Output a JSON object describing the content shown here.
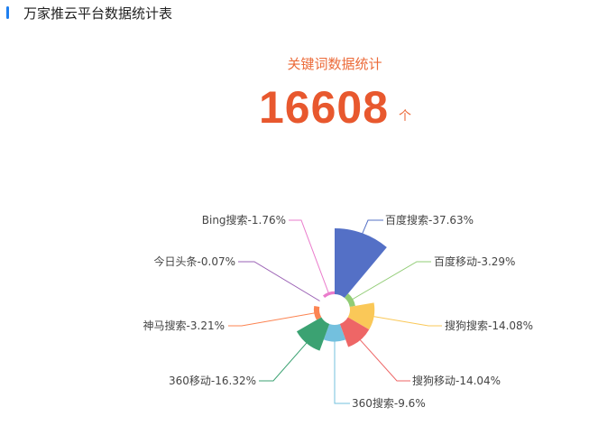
{
  "header": {
    "title": "万家推云平台数据统计表"
  },
  "summary": {
    "label": "关键词数据统计",
    "total": "16608",
    "unit": "个"
  },
  "chart_data": {
    "type": "pie",
    "rose": true,
    "categories": [
      "百度搜索",
      "百度移动",
      "搜狗搜索",
      "搜狗移动",
      "360搜索",
      "360移动",
      "神马搜索",
      "今日头条",
      "Bing搜索"
    ],
    "values": [
      37.63,
      3.29,
      14.08,
      14.04,
      9.6,
      16.32,
      3.21,
      0.07,
      1.76
    ],
    "labels": [
      "百度搜索-37.63%",
      "百度移动-3.29%",
      "搜狗搜索-14.08%",
      "搜狗移动-14.04%",
      "360搜索-9.6%",
      "360移动-16.32%",
      "神马搜索-3.21%",
      "今日头条-0.07%",
      "Bing搜索-1.76%"
    ],
    "colors": [
      "#5470c6",
      "#91cc75",
      "#fac858",
      "#ee6666",
      "#73c0de",
      "#3ba272",
      "#fc8452",
      "#9a60b4",
      "#ea7ccc"
    ]
  }
}
